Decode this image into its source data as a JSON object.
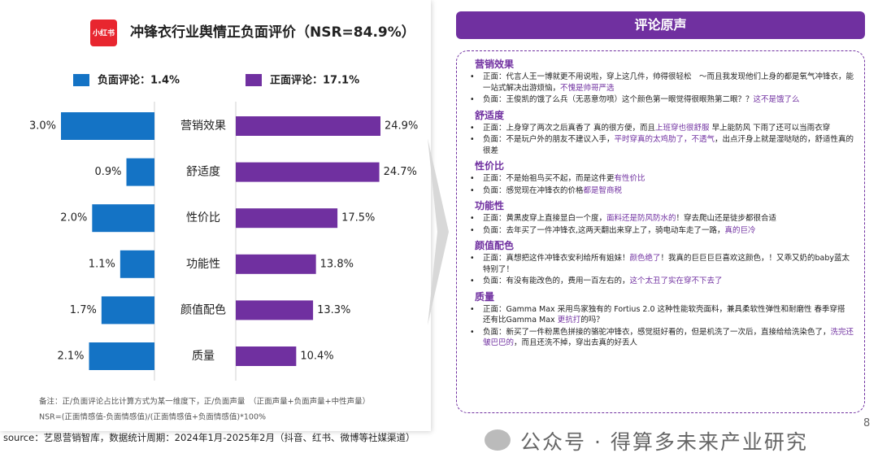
{
  "logo": "小红书",
  "chart_data": {
    "type": "butterfly",
    "title": "冲锋衣行业舆情正负面评价（NSR=84.9%）",
    "categories": [
      "营销效果",
      "舒适度",
      "性价比",
      "功能性",
      "颜值配色",
      "质量"
    ],
    "series": [
      {
        "name": "负面评论：1.4%",
        "color": "#1473c5",
        "values": [
          3.0,
          0.9,
          2.0,
          1.1,
          1.7,
          2.1
        ],
        "value_labels": [
          "3.0%",
          "0.9%",
          "2.0%",
          "1.1%",
          "1.7%",
          "2.1%"
        ]
      },
      {
        "name": "正面评论：17.1%",
        "color": "#7030a0",
        "values": [
          24.9,
          24.7,
          17.5,
          13.8,
          13.3,
          10.4
        ],
        "value_labels": [
          "24.9%",
          "24.7%",
          "17.5%",
          "13.8%",
          "13.3%",
          "10.4%"
        ]
      }
    ],
    "notes": [
      "备注：正/负面评论占比计算方式为某一维度下，正/负面声量　（正面声量+负面声量+中性声量）",
      "NSR=(正面情感值-负面情感值)/(正面情感值+负面情感值)*100%"
    ]
  },
  "source": "source：艺恩营销智库，数据统计周期：2024年1月-2025年2月（抖音、红书、微博等社媒渠道）",
  "comments": {
    "title": "评论原声",
    "sections": [
      {
        "title": "营销效果",
        "items": [
          [
            "正面：代言人王一博就更不用说啦，穿上这几件，帅得很轻松　～而且我发现他们上身的都是氧气冲锋衣，能一站式解决出游烦恼，",
            "不愧是帅哥严选"
          ],
          [
            "负面：王俊凯的饿了么兵（无恶意勿喷）这个颜色第一眼觉得很眼熟第二眼？？",
            "这不是饿了么"
          ]
        ]
      },
      {
        "title": "舒适度",
        "items": [
          [
            "正面：上身穿了两次之后真香了 真的很方便，而且",
            "上班穿也很舒服",
            " 早上能防风 下雨了还可以当雨衣穿"
          ],
          [
            "负面：不是玩户外的朋友不建议入手，",
            "平时穿真的太鸡肋了，不透气",
            "，出点汗身上就是湿哒哒的，舒适性真的很差"
          ]
        ]
      },
      {
        "title": "性价比",
        "items": [
          [
            "正面：不是始祖鸟买不起，而是这件更",
            "有性价比"
          ],
          [
            "负面：感觉现在冲锋衣的价格",
            "都是智商税"
          ]
        ]
      },
      {
        "title": "功能性",
        "items": [
          [
            "正面：黄黑皮穿上直接显白一个度，",
            "面料还是防风防水的",
            "！穿去爬山还是徒步都很合适"
          ],
          [
            "负面：去年买了一件冲锋衣,这两天翻出来穿上了，骑电动车走了一路，",
            "真的巨冷"
          ]
        ]
      },
      {
        "title": "颜值配色",
        "items": [
          [
            "正面：真想把这件冲锋衣安利给所有姐妹！",
            "颜色绝了",
            "！我真的巨巨巨巨喜欢这颜色，！又乖又奶的baby蓝太特别了！"
          ],
          [
            "负面：有没有能改色的，费用一百左右的，",
            "这个太丑了实在穿不下去了"
          ]
        ]
      },
      {
        "title": "质量",
        "items": [
          [
            "正面：Gamma Max 采用鸟家独有的 Fortius 2.0 这种性能软壳面料，兼具柔软性弹性和耐磨性 春季穿搭 还有比Gamma Max ",
            "更抗打",
            "的吗？"
          ],
          [
            "负面：新买了一件粉黑色拼接的骆驼冲锋衣，感觉挺好看的，但是机洗了一次后，直接给给洗染色了，",
            "洗完还皱巴巴的",
            "，而且还洗不掉，穿出去真的好丢人"
          ]
        ]
      }
    ]
  },
  "watermark": "公众号 · 得算多未来产业研究",
  "page_number": "8"
}
